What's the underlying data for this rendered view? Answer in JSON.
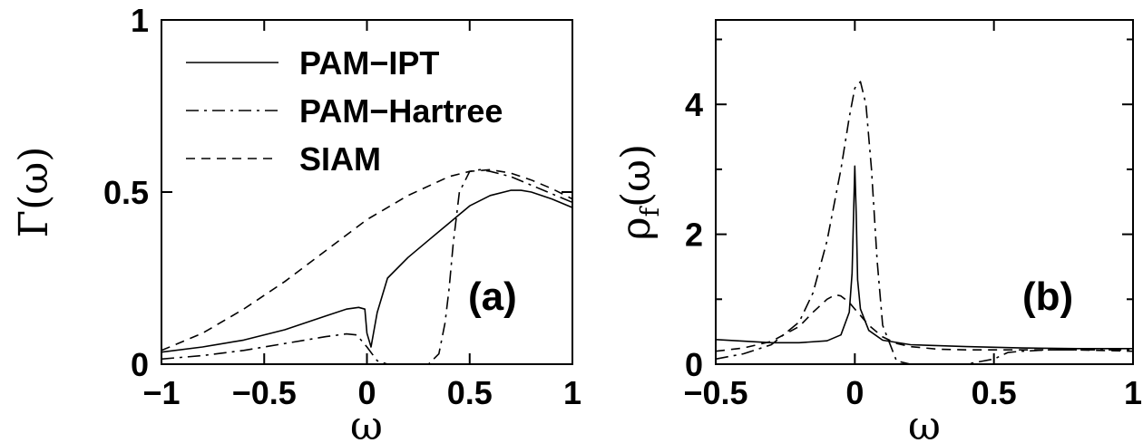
{
  "chart_data": [
    {
      "panel_label": "(a)",
      "type": "line",
      "xlabel": "ω",
      "ylabel": "Γ(ω)",
      "xlim": [
        -1,
        1
      ],
      "ylim": [
        0,
        1
      ],
      "xticks": [
        "−1",
        "−0.5",
        "0",
        "0.5",
        "1"
      ],
      "yticks": [
        "0",
        "0.5",
        "1"
      ],
      "legend_position": "top-left",
      "series": [
        {
          "name": "PAM−IPT",
          "style": "solid",
          "x": [
            -1.0,
            -0.8,
            -0.6,
            -0.4,
            -0.2,
            -0.1,
            -0.04,
            -0.01,
            0.0,
            0.02,
            0.05,
            0.1,
            0.2,
            0.3,
            0.4,
            0.5,
            0.6,
            0.7,
            0.75,
            0.8,
            0.9,
            1.0
          ],
          "y": [
            0.035,
            0.05,
            0.07,
            0.1,
            0.14,
            0.16,
            0.165,
            0.16,
            0.09,
            0.05,
            0.15,
            0.25,
            0.31,
            0.36,
            0.41,
            0.46,
            0.49,
            0.505,
            0.505,
            0.5,
            0.48,
            0.455
          ]
        },
        {
          "name": "PAM−Hartree",
          "style": "dash-dot",
          "x": [
            -1.0,
            -0.8,
            -0.6,
            -0.4,
            -0.2,
            -0.1,
            -0.05,
            0.0,
            0.05,
            0.1,
            0.2,
            0.3,
            0.35,
            0.38,
            0.4,
            0.42,
            0.45,
            0.5,
            0.55,
            0.6,
            0.7,
            0.8,
            0.9,
            1.0
          ],
          "y": [
            0.015,
            0.025,
            0.04,
            0.06,
            0.08,
            0.088,
            0.085,
            0.05,
            0.01,
            0.0,
            0.0,
            0.0,
            0.03,
            0.12,
            0.22,
            0.35,
            0.5,
            0.56,
            0.565,
            0.56,
            0.545,
            0.52,
            0.495,
            0.47
          ]
        },
        {
          "name": "SIAM",
          "style": "dashed",
          "x": [
            -1.0,
            -0.8,
            -0.6,
            -0.4,
            -0.2,
            0.0,
            0.2,
            0.4,
            0.5,
            0.6,
            0.7,
            0.8,
            0.9,
            1.0
          ],
          "y": [
            0.04,
            0.09,
            0.16,
            0.24,
            0.33,
            0.42,
            0.49,
            0.545,
            0.56,
            0.565,
            0.555,
            0.535,
            0.51,
            0.48
          ]
        }
      ]
    },
    {
      "panel_label": "(b)",
      "type": "line",
      "xlabel": "ω",
      "ylabel": "ρ_f(ω)",
      "ylabel_main": "ρ",
      "ylabel_sub": "f",
      "ylabel_tail": "(ω)",
      "xlim": [
        -0.5,
        1
      ],
      "ylim": [
        0,
        5.3
      ],
      "xticks": [
        "−0.5",
        "0",
        "0.5",
        "1"
      ],
      "yticks": [
        "0",
        "2",
        "4"
      ],
      "series": [
        {
          "name": "PAM−IPT",
          "style": "solid",
          "x": [
            -0.5,
            -0.3,
            -0.2,
            -0.1,
            -0.05,
            -0.02,
            -0.01,
            0.0,
            0.005,
            0.01,
            0.02,
            0.05,
            0.1,
            0.2,
            0.4,
            0.6,
            0.8,
            1.0
          ],
          "y": [
            0.38,
            0.33,
            0.33,
            0.36,
            0.45,
            0.8,
            1.4,
            3.05,
            2.3,
            1.3,
            0.85,
            0.52,
            0.37,
            0.3,
            0.27,
            0.25,
            0.24,
            0.24
          ]
        },
        {
          "name": "PAM−Hartree",
          "style": "dash-dot",
          "x": [
            -0.5,
            -0.4,
            -0.3,
            -0.2,
            -0.15,
            -0.1,
            -0.05,
            -0.02,
            0.0,
            0.02,
            0.04,
            0.06,
            0.08,
            0.1,
            0.15,
            0.2,
            0.3,
            0.4,
            0.5,
            0.55,
            0.6,
            0.7,
            0.8,
            1.0
          ],
          "y": [
            0.08,
            0.16,
            0.3,
            0.65,
            1.1,
            1.9,
            3.0,
            3.8,
            4.25,
            4.35,
            4.0,
            3.0,
            1.6,
            0.6,
            0.05,
            0.0,
            0.0,
            0.0,
            0.08,
            0.18,
            0.2,
            0.22,
            0.22,
            0.22
          ]
        },
        {
          "name": "SIAM",
          "style": "dashed",
          "x": [
            -0.5,
            -0.4,
            -0.3,
            -0.2,
            -0.15,
            -0.1,
            -0.07,
            -0.05,
            -0.02,
            0.0,
            0.02,
            0.05,
            0.1,
            0.15,
            0.2,
            0.3,
            0.4,
            0.6,
            0.8,
            1.0
          ],
          "y": [
            0.2,
            0.25,
            0.35,
            0.58,
            0.8,
            1.0,
            1.07,
            1.05,
            0.95,
            0.85,
            0.75,
            0.6,
            0.42,
            0.32,
            0.27,
            0.23,
            0.22,
            0.22,
            0.22,
            0.2
          ]
        }
      ]
    }
  ]
}
